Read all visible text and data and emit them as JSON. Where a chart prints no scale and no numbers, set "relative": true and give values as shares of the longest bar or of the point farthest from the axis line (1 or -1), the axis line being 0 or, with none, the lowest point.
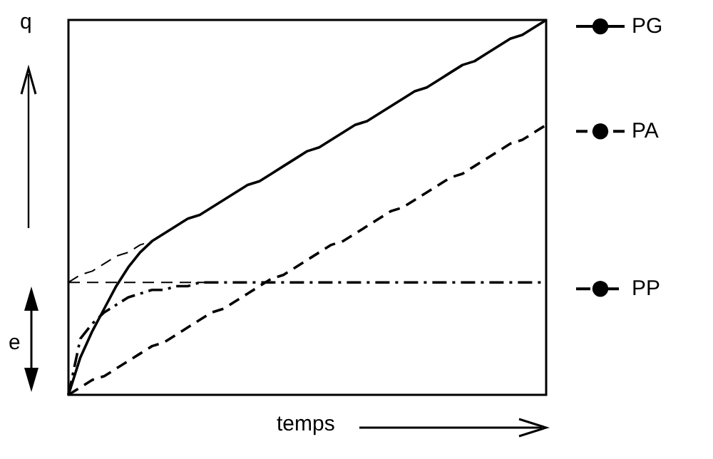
{
  "chart_data": {
    "type": "line",
    "relative": true,
    "grid": false,
    "legend": "right",
    "categories": [
      null,
      null,
      null,
      null,
      null,
      null,
      null,
      null,
      null,
      null,
      null,
      null,
      null,
      null,
      null,
      null,
      null,
      null,
      null,
      null,
      null,
      null,
      null,
      null,
      null,
      null,
      null,
      null,
      null,
      null,
      null,
      null,
      null,
      null,
      null,
      null,
      null,
      null,
      null,
      null,
      null
    ],
    "annotations": [
      "q",
      "e",
      "temps"
    ],
    "series": [
      {
        "name": "PG",
        "color": "#000000",
        "line_style": "solid",
        "values": [
          0,
          0.1,
          0.17,
          0.23,
          0.29,
          0.34,
          0.38,
          0.41,
          0.43,
          0.45,
          0.47,
          0.48,
          0.5,
          0.52,
          0.54,
          0.56,
          0.57,
          0.59,
          0.61,
          0.63,
          0.65,
          0.66,
          0.68,
          0.7,
          0.72,
          0.73,
          0.75,
          0.77,
          0.79,
          0.81,
          0.82,
          0.84,
          0.86,
          0.88,
          0.89,
          0.91,
          0.93,
          0.95,
          0.96,
          0.98,
          1.0
        ]
      },
      {
        "name": "PA",
        "color": "#000000",
        "line_style": "dashed",
        "values": [
          0,
          0.02,
          0.04,
          0.05,
          0.07,
          0.09,
          0.11,
          0.13,
          0.14,
          0.16,
          0.18,
          0.2,
          0.22,
          0.23,
          0.25,
          0.27,
          0.29,
          0.31,
          0.32,
          0.34,
          0.36,
          0.38,
          0.4,
          0.41,
          0.43,
          0.45,
          0.47,
          0.49,
          0.5,
          0.52,
          0.54,
          0.56,
          0.58,
          0.59,
          0.61,
          0.63,
          0.65,
          0.67,
          0.68,
          0.7,
          0.72
        ]
      },
      {
        "name": "PP",
        "color": "#000000",
        "line_style": "dashdot",
        "values": [
          0,
          0.15,
          0.19,
          0.22,
          0.24,
          0.26,
          0.27,
          0.28,
          0.28,
          0.29,
          0.29,
          0.3,
          0.3,
          0.3,
          0.3,
          0.3,
          0.3,
          0.3,
          0.3,
          0.3,
          0.3,
          0.3,
          0.3,
          0.3,
          0.3,
          0.3,
          0.3,
          0.3,
          0.3,
          0.3,
          0.3,
          0.3,
          0.3,
          0.3,
          0.3,
          0.3,
          0.3,
          0.3,
          0.3,
          0.3,
          0.3
        ]
      },
      {
        "color": "#000000",
        "line_style": "dashed",
        "values": [
          0.3,
          0.32,
          0.33,
          0.35,
          0.37,
          0.38,
          0.4,
          0.41,
          0.43,
          null,
          null,
          null,
          null,
          null,
          null,
          null,
          null,
          null,
          null,
          null,
          null,
          null,
          null,
          null,
          null,
          null,
          null,
          null,
          null,
          null,
          null,
          null,
          null,
          null,
          null,
          null,
          null,
          null,
          null,
          null,
          null
        ]
      },
      {
        "color": "#000000",
        "line_style": "dashed",
        "values": [
          0.3,
          0.3,
          0.3,
          0.3,
          0.3,
          0.3,
          0.3,
          0.3,
          0.3,
          0.3,
          0.3,
          0.3,
          0.3,
          null,
          null,
          null,
          null,
          null,
          null,
          null,
          null,
          null,
          null,
          null,
          null,
          null,
          null,
          null,
          null,
          null,
          null,
          null,
          null,
          null,
          null,
          null,
          null,
          null,
          null,
          null,
          null
        ]
      }
    ]
  }
}
